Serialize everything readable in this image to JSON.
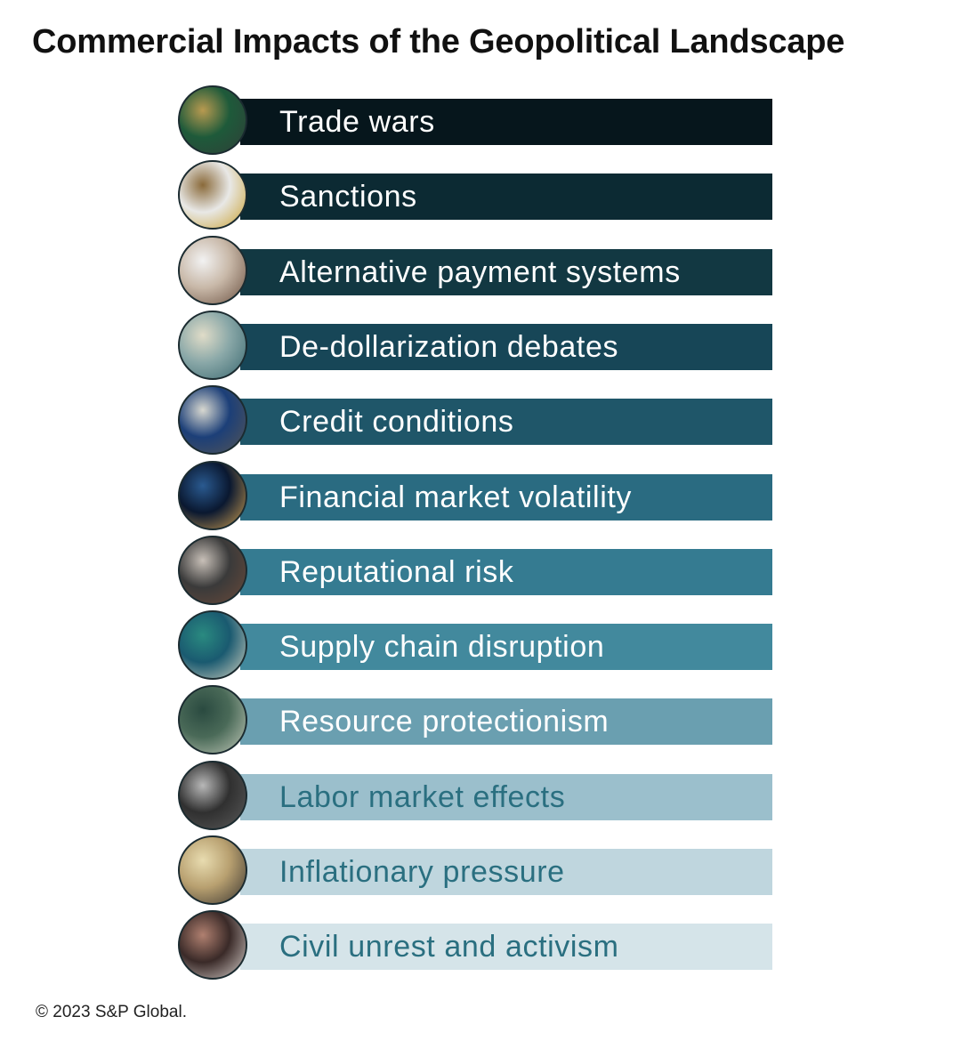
{
  "title": "Commercial Impacts of the Geopolitical Landscape",
  "items": [
    {
      "label": "Trade wars",
      "bar_color": "#06161c",
      "text_color": "#ffffff",
      "icon": "circuit-board-photo-icon",
      "photo": [
        "#1e5a3a",
        "#b89a50",
        "#2f3f38"
      ]
    },
    {
      "label": "Sanctions",
      "bar_color": "#0c2a33",
      "text_color": "#ffffff",
      "icon": "gavel-photo-icon",
      "photo": [
        "#e8e8e6",
        "#8a6a3a",
        "#c9a030"
      ]
    },
    {
      "label": "Alternative payment systems",
      "bar_color": "#123842",
      "text_color": "#ffffff",
      "icon": "smartphone-photo-icon",
      "photo": [
        "#c8b8a8",
        "#f2f2f2",
        "#6a5040"
      ]
    },
    {
      "label": "De-dollarization debates",
      "bar_color": "#174657",
      "text_color": "#ffffff",
      "icon": "banknotes-photo-icon",
      "photo": [
        "#8aa8a8",
        "#e0dcc8",
        "#3a6870"
      ]
    },
    {
      "label": "Credit conditions",
      "bar_color": "#1f5669",
      "text_color": "#ffffff",
      "icon": "bank-building-photo-icon",
      "photo": [
        "#1c3f78",
        "#d8d8d0",
        "#555555"
      ]
    },
    {
      "label": "Financial market volatility",
      "bar_color": "#2a6b81",
      "text_color": "#ffffff",
      "icon": "market-chart-photo-icon",
      "photo": [
        "#0a1830",
        "#2a5a90",
        "#d0a050"
      ]
    },
    {
      "label": "Reputational risk",
      "bar_color": "#357b91",
      "text_color": "#ffffff",
      "icon": "people-meeting-photo-icon",
      "photo": [
        "#3a3a3a",
        "#c8c0b8",
        "#6a4a3a"
      ]
    },
    {
      "label": "Supply chain disruption",
      "bar_color": "#42899d",
      "text_color": "#ffffff",
      "icon": "cargo-ship-photo-icon",
      "photo": [
        "#1a5a70",
        "#2a8a80",
        "#d0d0c0"
      ]
    },
    {
      "label": "Resource protectionism",
      "bar_color": "#6a9fb0",
      "text_color": "#ffffff",
      "icon": "minerals-photo-icon",
      "photo": [
        "#4a6a58",
        "#2a4a40",
        "#c0c8b8"
      ]
    },
    {
      "label": "Labor market effects",
      "bar_color": "#9bbfcc",
      "text_color": "#2a6f80",
      "icon": "office-workers-photo-icon",
      "photo": [
        "#303030",
        "#b8b8b8",
        "#5a5a5a"
      ]
    },
    {
      "label": "Inflationary pressure",
      "bar_color": "#bfd6de",
      "text_color": "#2a6f80",
      "icon": "grocery-store-photo-icon",
      "photo": [
        "#b8a070",
        "#e8dcb0",
        "#3a3530"
      ]
    },
    {
      "label": "Civil unrest and activism",
      "bar_color": "#d5e4e9",
      "text_color": "#2a6f80",
      "icon": "protest-crowd-photo-icon",
      "photo": [
        "#3a2a28",
        "#b08070",
        "#d8d0cc"
      ]
    }
  ],
  "footer": "© 2023 S&P Global."
}
